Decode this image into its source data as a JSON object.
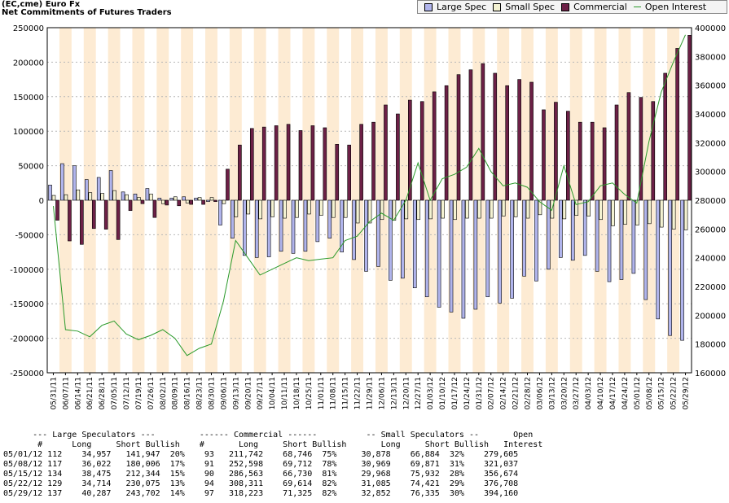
{
  "header": {
    "line1": "(EC,cme) Euro Fx",
    "line2": "Net Commitments of Futures Traders"
  },
  "legend": [
    {
      "label": "Large Spec",
      "color": "#b0b4ec",
      "kind": "box"
    },
    {
      "label": "Small Spec",
      "color": "#f4f2d2",
      "kind": "box"
    },
    {
      "label": "Commercial",
      "color": "#6c2046",
      "kind": "box"
    },
    {
      "label": "Open Interest",
      "color": "#2a9a2a",
      "kind": "line"
    }
  ],
  "colors": {
    "large": "#b0b4ec",
    "small": "#f4f2d2",
    "commercial": "#6c2046",
    "oi": "#2a9a2a",
    "band": "#fdebd3",
    "grid": "#b8b8b8"
  },
  "chart_data": {
    "type": "bar",
    "left_ylim": [
      -250000,
      250000
    ],
    "right_ylim": [
      160000,
      400000
    ],
    "left_ticks": [
      "250000",
      "200000",
      "150000",
      "100000",
      "50000",
      "0",
      "-50000",
      "-100000",
      "-150000",
      "-200000",
      "-250000"
    ],
    "right_ticks": [
      "400000",
      "380000",
      "360000",
      "340000",
      "320000",
      "300000",
      "280000",
      "260000",
      "240000",
      "220000",
      "200000",
      "180000",
      "160000"
    ],
    "grid": true,
    "legend_position": "top-right",
    "dates": [
      "05/31/11",
      "06/07/11",
      "06/14/11",
      "06/21/11",
      "06/28/11",
      "07/05/11",
      "07/12/11",
      "07/19/11",
      "07/26/11",
      "08/02/11",
      "08/09/11",
      "08/16/11",
      "08/23/11",
      "08/30/11",
      "09/06/11",
      "09/13/11",
      "09/20/11",
      "09/27/11",
      "10/04/11",
      "10/11/11",
      "10/18/11",
      "10/25/11",
      "11/01/11",
      "11/08/11",
      "11/15/11",
      "11/22/11",
      "11/29/11",
      "12/06/11",
      "12/13/11",
      "12/20/11",
      "12/27/11",
      "01/03/12",
      "01/10/12",
      "01/17/12",
      "01/24/12",
      "01/31/12",
      "02/07/12",
      "02/14/12",
      "02/21/12",
      "02/28/12",
      "03/06/12",
      "03/13/12",
      "03/20/12",
      "03/27/12",
      "04/03/12",
      "04/10/12",
      "04/17/12",
      "04/24/12",
      "05/01/12",
      "05/08/12",
      "05/15/12",
      "05/22/12",
      "05/29/12"
    ],
    "series": [
      {
        "name": "Large Spec",
        "values": [
          22000,
          53000,
          50000,
          30000,
          33000,
          43000,
          12000,
          9000,
          17000,
          3000,
          3000,
          5000,
          3000,
          -2000,
          -36000,
          -55000,
          -80000,
          -83000,
          -82000,
          -74000,
          -77000,
          -74000,
          -60000,
          -55000,
          -75000,
          -86000,
          -103000,
          -96000,
          -116000,
          -113000,
          -127000,
          -140000,
          -155000,
          -162000,
          -171000,
          -158000,
          -140000,
          -149000,
          -142000,
          -110000,
          -117000,
          -100000,
          -83000,
          -87000,
          -80000,
          -103000,
          -118000,
          -115000,
          -106000,
          -144000,
          -172000,
          -196000,
          -203000
        ]
      },
      {
        "name": "Small Spec",
        "values": [
          7000,
          8000,
          15000,
          11000,
          10000,
          14000,
          8000,
          4000,
          9000,
          -5000,
          5000,
          -4000,
          4000,
          4000,
          -5000,
          -24000,
          -20000,
          -27000,
          -24000,
          -26000,
          -25000,
          -20000,
          -22000,
          -25000,
          -25000,
          -33000,
          -33000,
          -28000,
          -29000,
          -27000,
          -28000,
          -27000,
          -26000,
          -28000,
          -26000,
          -26000,
          -26000,
          -23000,
          -24000,
          -26000,
          -21000,
          -26000,
          -27000,
          -22000,
          -23000,
          -28000,
          -37000,
          -35000,
          -36000,
          -34000,
          -39000,
          -42000,
          -43000
        ]
      },
      {
        "name": "Commercial",
        "values": [
          -29000,
          -59000,
          -64000,
          -41000,
          -42000,
          -57000,
          -15000,
          -5000,
          -25000,
          -7000,
          -8000,
          -6000,
          -6000,
          -2000,
          45000,
          80000,
          104000,
          106000,
          108000,
          110000,
          101000,
          108000,
          105000,
          81000,
          80000,
          110000,
          113000,
          138000,
          125000,
          145000,
          143000,
          157000,
          166000,
          182000,
          189000,
          198000,
          184000,
          166000,
          175000,
          171000,
          131000,
          142000,
          129000,
          113000,
          113000,
          105000,
          138000,
          156000,
          149000,
          143000,
          184000,
          220000,
          239000
        ]
      },
      {
        "name": "Open Interest",
        "values": [
          276000,
          190000,
          189000,
          185000,
          193000,
          196000,
          187000,
          183000,
          186000,
          190000,
          184000,
          172000,
          177000,
          180000,
          210000,
          252000,
          240000,
          228000,
          232000,
          236000,
          240000,
          238000,
          239000,
          240000,
          252000,
          255000,
          265000,
          271000,
          266000,
          280000,
          306000,
          280000,
          295000,
          298000,
          303000,
          316000,
          300000,
          290000,
          292000,
          289000,
          279000,
          273000,
          304000,
          277000,
          279000,
          290000,
          292000,
          284000,
          278000,
          321000,
          355000,
          376000,
          395000
        ]
      }
    ]
  },
  "table": {
    "header1": "      --- Large Speculators ---         ------ Commercial ------          -- Small Speculators --       Open",
    "header2": "       #      Long     Short Bullish    #       Long     Short Bullish       Long     Short Bullish   Interest",
    "rows": [
      "05/01/12 112    34,957   141,947  20%    93   211,742    68,746  75%     30,878    66,884  32%    279,605",
      "05/08/12 117    36,022   180,006  17%    91   252,598    69,712  78%     30,969    69,871  31%    321,037",
      "05/15/12 134    38,475   212,344  15%    90   286,563    66,730  81%     29,968    75,932  28%    356,674",
      "05/22/12 129    34,714   230,075  13%    94   308,311    69,614  82%     31,085    74,421  29%    376,708",
      "05/29/12 137    40,287   243,702  14%    97   318,223    71,325  82%     32,852    76,335  30%    394,160"
    ]
  }
}
